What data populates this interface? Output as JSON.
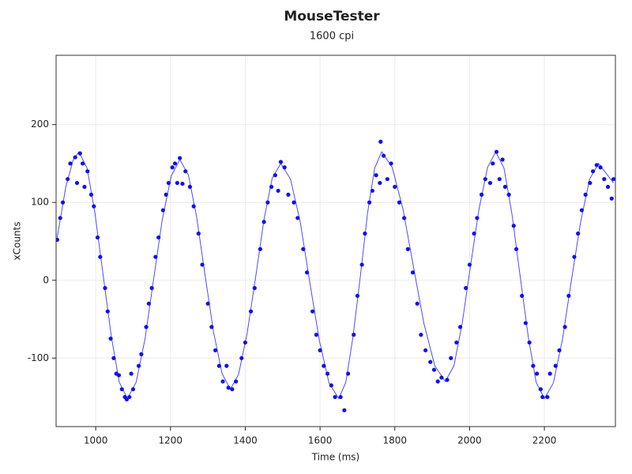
{
  "chart_data": {
    "type": "scatter",
    "title": "MouseTester",
    "subtitle": "1600 cpi",
    "x_label": "Time (ms)",
    "y_label": "xCounts",
    "xlim": [
      894,
      2390
    ],
    "ylim": [
      -188,
      289
    ],
    "xticks": [
      1000,
      1200,
      1400,
      1600,
      1800,
      2000,
      2200
    ],
    "yticks": [
      -100,
      0,
      100,
      200
    ],
    "grid": true,
    "series": [
      {
        "type": "line",
        "color": "#4b4bff",
        "x": [
          897,
          920,
          940,
          955,
          977,
          998,
          1020,
          1042,
          1063,
          1085,
          1108,
          1132,
          1155,
          1178,
          1202,
          1225,
          1248,
          1270,
          1292,
          1315,
          1338,
          1360,
          1382,
          1405,
          1428,
          1450,
          1472,
          1495,
          1521,
          1547,
          1572,
          1598,
          1624,
          1650,
          1669,
          1688,
          1708,
          1727,
          1746,
          1765,
          1793,
          1822,
          1850,
          1878,
          1907,
          1935,
          1958,
          1980,
          2002,
          2025,
          2048,
          2070,
          2092,
          2113,
          2135,
          2157,
          2178,
          2200,
          2224,
          2248,
          2272,
          2297,
          2321,
          2345,
          2385
        ],
        "values": [
          55,
          120,
          155,
          165,
          144,
          86,
          6,
          -73,
          -131,
          -152,
          -131,
          -75,
          2,
          78,
          134,
          155,
          135,
          81,
          8,
          -66,
          -120,
          -140,
          -121,
          -68,
          5,
          78,
          131,
          150,
          130,
          75,
          -1,
          -77,
          -132,
          -152,
          -131,
          -73,
          6,
          86,
          144,
          165,
          145,
          91,
          17,
          -56,
          -110,
          -130,
          -110,
          -56,
          17,
          91,
          145,
          165,
          144,
          86,
          6,
          -73,
          -131,
          -152,
          -132,
          -77,
          -1,
          75,
          130,
          150,
          125
        ]
      },
      {
        "type": "scatter",
        "color": "#1010ee",
        "x": [
          897,
          905,
          912,
          925,
          932,
          945,
          950,
          958,
          965,
          970,
          978,
          988,
          995,
          1005,
          1012,
          1025,
          1032,
          1040,
          1048,
          1055,
          1062,
          1070,
          1078,
          1083,
          1090,
          1095,
          1100,
          1115,
          1122,
          1135,
          1142,
          1150,
          1160,
          1168,
          1180,
          1188,
          1195,
          1205,
          1212,
          1218,
          1225,
          1232,
          1240,
          1252,
          1262,
          1275,
          1285,
          1300,
          1310,
          1320,
          1330,
          1340,
          1350,
          1355,
          1365,
          1375,
          1390,
          1400,
          1415,
          1425,
          1440,
          1450,
          1460,
          1470,
          1480,
          1488,
          1495,
          1505,
          1515,
          1530,
          1540,
          1555,
          1565,
          1580,
          1590,
          1600,
          1610,
          1620,
          1630,
          1640,
          1655,
          1665,
          1675,
          1690,
          1700,
          1712,
          1720,
          1732,
          1740,
          1750,
          1760,
          1762,
          1770,
          1780,
          1790,
          1800,
          1812,
          1825,
          1835,
          1848,
          1860,
          1870,
          1882,
          1895,
          1905,
          1915,
          1925,
          1940,
          1950,
          1965,
          1975,
          1990,
          2000,
          2012,
          2020,
          2032,
          2042,
          2055,
          2062,
          2072,
          2080,
          2088,
          2095,
          2105,
          2118,
          2125,
          2140,
          2150,
          2160,
          2170,
          2180,
          2190,
          2195,
          2208,
          2215,
          2230,
          2240,
          2255,
          2265,
          2280,
          2290,
          2300,
          2310,
          2322,
          2330,
          2340,
          2350,
          2360,
          2370,
          2380,
          2385
        ],
        "values": [
          52,
          80,
          100,
          130,
          150,
          158,
          125,
          163,
          150,
          120,
          140,
          110,
          95,
          55,
          30,
          -10,
          -40,
          -75,
          -100,
          -120,
          -122,
          -140,
          -150,
          -153,
          -150,
          -120,
          -140,
          -110,
          -95,
          -60,
          -30,
          -10,
          30,
          55,
          90,
          110,
          125,
          145,
          150,
          125,
          157,
          124,
          140,
          120,
          95,
          60,
          20,
          -30,
          -60,
          -90,
          -110,
          -130,
          -110,
          -138,
          -140,
          -130,
          -100,
          -80,
          -40,
          -10,
          40,
          75,
          100,
          120,
          135,
          115,
          152,
          145,
          110,
          100,
          80,
          40,
          10,
          -40,
          -70,
          -90,
          -110,
          -120,
          -135,
          -150,
          -150,
          -167,
          -120,
          -70,
          -20,
          20,
          60,
          100,
          115,
          135,
          125,
          178,
          160,
          130,
          150,
          120,
          100,
          80,
          40,
          10,
          -30,
          -70,
          -90,
          -105,
          -115,
          -130,
          -125,
          -128,
          -100,
          -80,
          -60,
          -10,
          20,
          60,
          80,
          110,
          130,
          125,
          150,
          165,
          130,
          155,
          120,
          110,
          70,
          40,
          -20,
          -55,
          -80,
          -110,
          -120,
          -140,
          -150,
          -150,
          -120,
          -110,
          -90,
          -60,
          -20,
          30,
          60,
          90,
          110,
          125,
          140,
          148,
          145,
          130,
          120,
          105,
          130
        ]
      }
    ]
  }
}
